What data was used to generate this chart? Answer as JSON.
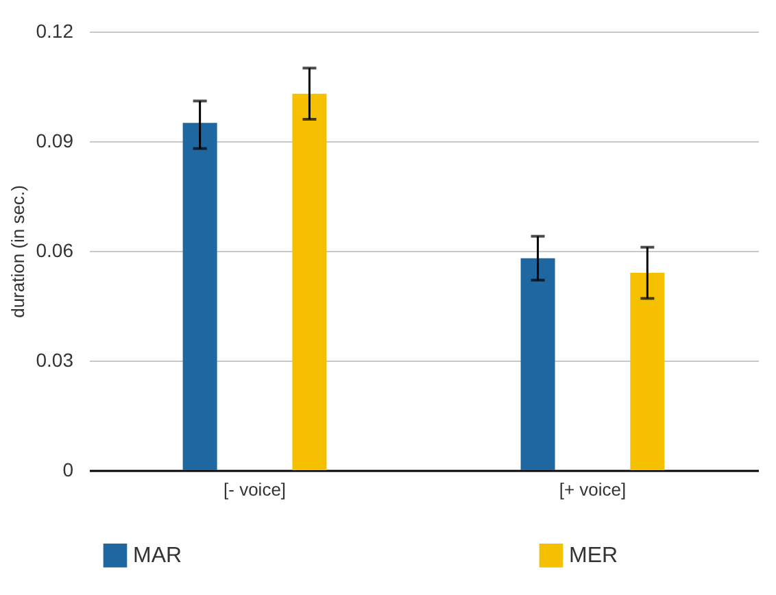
{
  "chart_data": {
    "type": "bar",
    "ylabel": "duration (in sec.)",
    "categories": [
      "[- voice]",
      "[+ voice]"
    ],
    "series": [
      {
        "name": "MAR",
        "color": "#1f67a0",
        "values": [
          0.095,
          0.058
        ],
        "errors": [
          [
            0.088,
            0.101
          ],
          [
            0.052,
            0.064
          ]
        ]
      },
      {
        "name": "MER",
        "color": "#f4c000",
        "values": [
          0.103,
          0.054
        ],
        "errors": [
          [
            0.096,
            0.11
          ],
          [
            0.047,
            0.061
          ]
        ]
      }
    ],
    "ylim": [
      0,
      0.12
    ],
    "yticks": [
      0,
      0.03,
      0.06,
      0.09,
      0.12
    ],
    "grid": "y",
    "legend": "bottom"
  }
}
